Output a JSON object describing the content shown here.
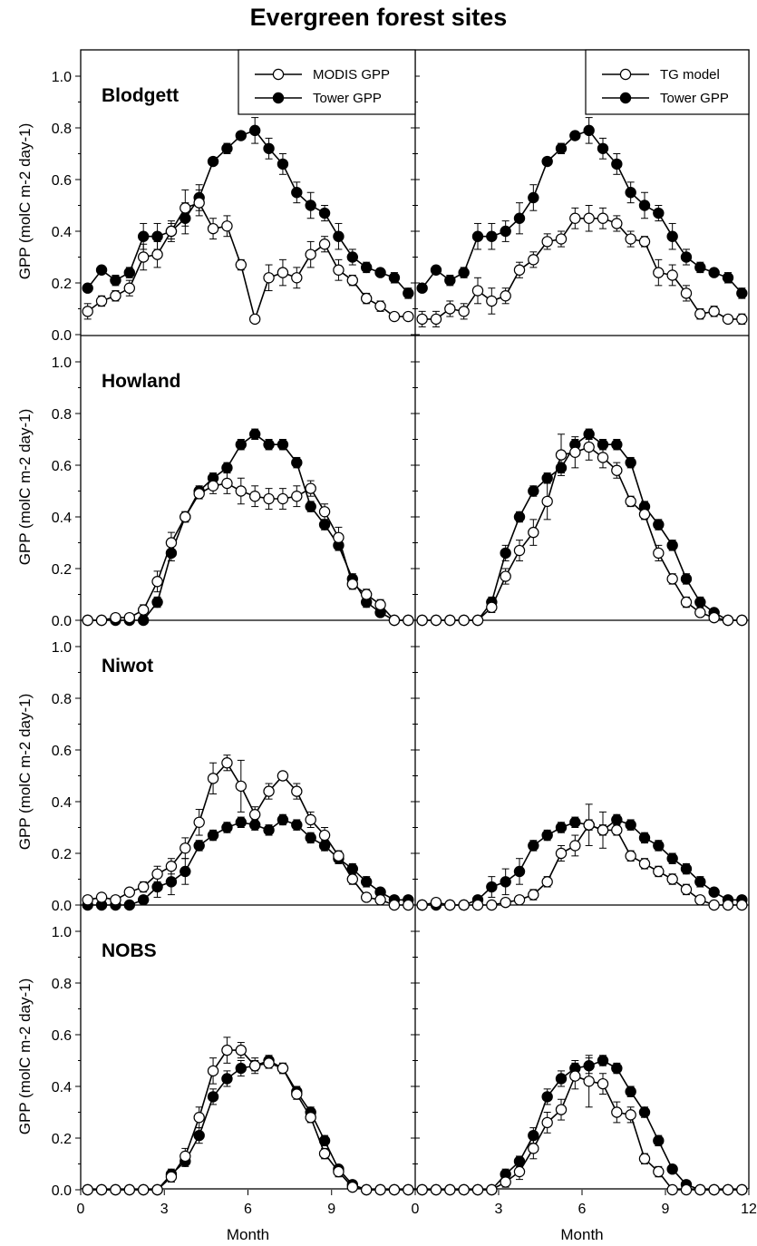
{
  "figure": {
    "title": "Evergreen forest sites",
    "ylabel": "GPP (molC m-2 day-1)",
    "xlabel": "Month"
  },
  "chart_data": {
    "type": "line",
    "title": "Evergreen forest sites",
    "xlabel": "Month",
    "ylabel": "GPP (molC m-2 day-1)",
    "xlim": [
      0,
      12
    ],
    "ylim": [
      0,
      1.1
    ],
    "x_ticks": [
      0,
      3,
      6,
      9,
      12
    ],
    "x_tick_labels_left": [
      "0",
      "3",
      "6",
      "9"
    ],
    "x_tick_labels_right": [
      "0",
      "3",
      "6",
      "9",
      "12"
    ],
    "y_ticks": [
      0.0,
      0.2,
      0.4,
      0.6,
      0.8,
      1.0
    ],
    "y_tick_labels": [
      "0.0",
      "0.2",
      "0.4",
      "0.6",
      "0.8",
      "1.0"
    ],
    "grid": false,
    "legend_position": "top-right",
    "legend_left": [
      "MODIS GPP",
      "Tower GPP"
    ],
    "legend_right": [
      "TG model",
      "Tower GPP"
    ],
    "x": [
      0.25,
      0.75,
      1.25,
      1.75,
      2.25,
      2.75,
      3.25,
      3.75,
      4.25,
      4.75,
      5.25,
      5.75,
      6.25,
      6.75,
      7.25,
      7.75,
      8.25,
      8.75,
      9.25,
      9.75,
      10.25,
      10.75,
      11.25,
      11.75
    ],
    "rows": [
      {
        "site": "Blodgett",
        "tower": [
          0.18,
          0.25,
          0.21,
          0.24,
          0.38,
          0.38,
          0.4,
          0.45,
          0.53,
          0.67,
          0.72,
          0.77,
          0.79,
          0.72,
          0.66,
          0.55,
          0.5,
          0.47,
          0.38,
          0.3,
          0.26,
          0.24,
          0.22,
          0.16
        ],
        "tower_err": [
          0.01,
          0.01,
          0.02,
          0.02,
          0.05,
          0.05,
          0.04,
          0.06,
          0.05,
          0.01,
          0.02,
          0.01,
          0.05,
          0.04,
          0.04,
          0.04,
          0.05,
          0.03,
          0.05,
          0.03,
          0.02,
          0.01,
          0.02,
          0.02
        ],
        "modis": [
          0.09,
          0.13,
          0.15,
          0.18,
          0.3,
          0.31,
          0.4,
          0.49,
          0.51,
          0.41,
          0.42,
          0.27,
          0.06,
          0.22,
          0.24,
          0.22,
          0.31,
          0.35,
          0.25,
          0.21,
          0.14,
          0.11,
          0.07,
          0.07
        ],
        "modis_err": [
          0.03,
          0.02,
          0.02,
          0.03,
          0.05,
          0.05,
          0.03,
          0.07,
          0.05,
          0.04,
          0.04,
          0.02,
          0.01,
          0.05,
          0.05,
          0.04,
          0.05,
          0.03,
          0.04,
          0.02,
          0.02,
          0.02,
          0.01,
          0.01
        ],
        "tg": [
          0.06,
          0.06,
          0.1,
          0.09,
          0.17,
          0.13,
          0.15,
          0.25,
          0.29,
          0.36,
          0.37,
          0.45,
          0.45,
          0.45,
          0.43,
          0.37,
          0.36,
          0.24,
          0.23,
          0.16,
          0.08,
          0.09,
          0.06,
          0.06
        ],
        "tg_err": [
          0.03,
          0.03,
          0.03,
          0.03,
          0.05,
          0.05,
          0.03,
          0.03,
          0.03,
          0.03,
          0.03,
          0.04,
          0.05,
          0.04,
          0.03,
          0.03,
          0.02,
          0.05,
          0.04,
          0.03,
          0.02,
          0.02,
          0.01,
          0.02
        ]
      },
      {
        "site": "Howland",
        "tower": [
          0.0,
          0.0,
          0.0,
          0.0,
          0.0,
          0.07,
          0.26,
          0.4,
          0.5,
          0.55,
          0.59,
          0.68,
          0.72,
          0.68,
          0.68,
          0.61,
          0.44,
          0.37,
          0.29,
          0.16,
          0.07,
          0.03,
          0.0,
          0.0
        ],
        "tower_err": [
          0.0,
          0.0,
          0.0,
          0.0,
          0.0,
          0.02,
          0.03,
          0.02,
          0.02,
          0.02,
          0.02,
          0.02,
          0.02,
          0.02,
          0.02,
          0.02,
          0.02,
          0.02,
          0.02,
          0.02,
          0.02,
          0.01,
          0.0,
          0.0
        ],
        "modis": [
          0.0,
          0.0,
          0.01,
          0.01,
          0.04,
          0.15,
          0.3,
          0.4,
          0.49,
          0.52,
          0.53,
          0.5,
          0.48,
          0.47,
          0.47,
          0.48,
          0.51,
          0.42,
          0.32,
          0.14,
          0.1,
          0.06,
          0.0,
          0.0
        ],
        "modis_err": [
          0.0,
          0.0,
          0.01,
          0.01,
          0.02,
          0.04,
          0.04,
          0.02,
          0.02,
          0.03,
          0.04,
          0.05,
          0.04,
          0.04,
          0.04,
          0.04,
          0.03,
          0.03,
          0.04,
          0.02,
          0.02,
          0.02,
          0.0,
          0.0
        ],
        "tg": [
          0.0,
          0.0,
          0.0,
          0.0,
          0.0,
          0.05,
          0.17,
          0.27,
          0.34,
          0.46,
          0.64,
          0.65,
          0.67,
          0.63,
          0.58,
          0.46,
          0.41,
          0.26,
          0.16,
          0.07,
          0.03,
          0.01,
          0.0,
          0.0
        ],
        "tg_err": [
          0.0,
          0.0,
          0.0,
          0.0,
          0.0,
          0.02,
          0.03,
          0.04,
          0.05,
          0.07,
          0.08,
          0.06,
          0.05,
          0.04,
          0.03,
          0.02,
          0.02,
          0.03,
          0.02,
          0.02,
          0.01,
          0.01,
          0.0,
          0.0
        ]
      },
      {
        "site": "Niwot",
        "tower": [
          0.0,
          0.0,
          0.0,
          0.0,
          0.02,
          0.07,
          0.09,
          0.13,
          0.23,
          0.27,
          0.3,
          0.32,
          0.31,
          0.29,
          0.33,
          0.31,
          0.26,
          0.23,
          0.18,
          0.14,
          0.09,
          0.05,
          0.02,
          0.02
        ],
        "tower_err": [
          0.0,
          0.0,
          0.0,
          0.01,
          0.01,
          0.04,
          0.05,
          0.05,
          0.02,
          0.02,
          0.02,
          0.02,
          0.02,
          0.02,
          0.02,
          0.02,
          0.02,
          0.02,
          0.02,
          0.02,
          0.02,
          0.01,
          0.01,
          0.01
        ],
        "modis": [
          0.02,
          0.03,
          0.02,
          0.05,
          0.07,
          0.12,
          0.15,
          0.22,
          0.32,
          0.49,
          0.55,
          0.46,
          0.35,
          0.44,
          0.5,
          0.44,
          0.33,
          0.27,
          0.19,
          0.1,
          0.03,
          0.02,
          0.0,
          0.0
        ],
        "modis_err": [
          0.01,
          0.01,
          0.01,
          0.01,
          0.02,
          0.03,
          0.03,
          0.04,
          0.05,
          0.06,
          0.03,
          0.1,
          0.03,
          0.03,
          0.01,
          0.03,
          0.03,
          0.03,
          0.02,
          0.02,
          0.01,
          0.01,
          0.0,
          0.0
        ],
        "tg": [
          0.0,
          0.01,
          0.0,
          0.0,
          0.0,
          0.0,
          0.01,
          0.02,
          0.04,
          0.09,
          0.2,
          0.23,
          0.31,
          0.29,
          0.29,
          0.19,
          0.16,
          0.13,
          0.1,
          0.06,
          0.02,
          0.0,
          0.0,
          0.0
        ],
        "tg_err": [
          0.0,
          0.01,
          0.0,
          0.0,
          0.0,
          0.0,
          0.01,
          0.01,
          0.02,
          0.02,
          0.03,
          0.04,
          0.08,
          0.07,
          0.02,
          0.02,
          0.02,
          0.02,
          0.02,
          0.02,
          0.01,
          0.0,
          0.0,
          0.0
        ]
      },
      {
        "site": "NOBS",
        "tower": [
          0.0,
          0.0,
          0.0,
          0.0,
          0.0,
          0.0,
          0.06,
          0.11,
          0.21,
          0.36,
          0.43,
          0.47,
          0.48,
          0.5,
          0.47,
          0.38,
          0.3,
          0.19,
          0.08,
          0.02,
          0.0,
          0.0,
          0.0,
          0.0
        ],
        "tower_err": [
          0.0,
          0.0,
          0.0,
          0.0,
          0.0,
          0.0,
          0.02,
          0.02,
          0.03,
          0.03,
          0.03,
          0.03,
          0.03,
          0.02,
          0.02,
          0.02,
          0.02,
          0.02,
          0.01,
          0.01,
          0.0,
          0.0,
          0.0,
          0.0
        ],
        "modis": [
          0.0,
          0.0,
          0.0,
          0.0,
          0.0,
          0.0,
          0.05,
          0.13,
          0.28,
          0.46,
          0.54,
          0.54,
          0.48,
          0.49,
          0.47,
          0.37,
          0.28,
          0.14,
          0.07,
          0.01,
          0.0,
          0.0,
          0.0,
          0.0
        ],
        "modis_err": [
          0.0,
          0.0,
          0.0,
          0.0,
          0.0,
          0.0,
          0.02,
          0.03,
          0.04,
          0.05,
          0.05,
          0.03,
          0.02,
          0.02,
          0.02,
          0.02,
          0.02,
          0.02,
          0.02,
          0.01,
          0.0,
          0.0,
          0.0,
          0.0
        ],
        "tg": [
          0.0,
          0.0,
          0.0,
          0.0,
          0.0,
          0.0,
          0.03,
          0.07,
          0.16,
          0.26,
          0.31,
          0.44,
          0.42,
          0.41,
          0.3,
          0.29,
          0.12,
          0.07,
          0.0,
          0.0,
          0.0,
          0.0,
          0.0,
          0.0
        ],
        "tg_err": [
          0.0,
          0.0,
          0.0,
          0.0,
          0.0,
          0.0,
          0.02,
          0.03,
          0.04,
          0.04,
          0.04,
          0.05,
          0.1,
          0.04,
          0.04,
          0.03,
          0.02,
          0.02,
          0.0,
          0.0,
          0.0,
          0.0,
          0.0,
          0.0
        ]
      }
    ]
  }
}
